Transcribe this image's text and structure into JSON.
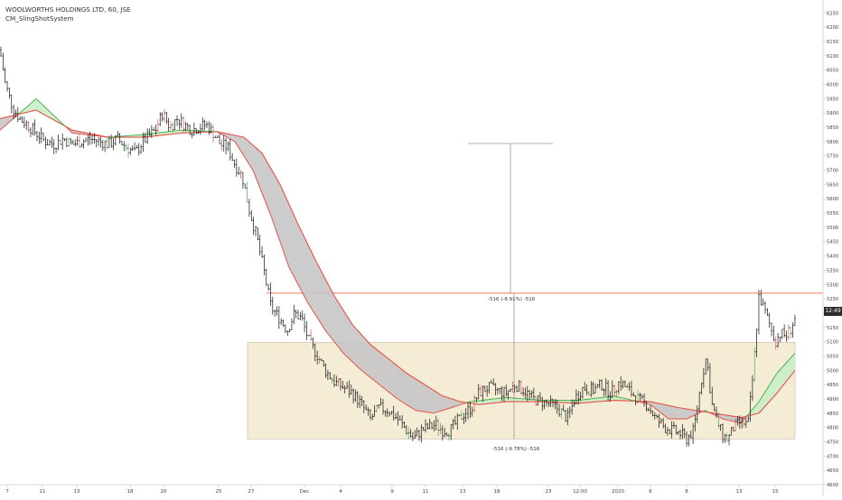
{
  "header": {
    "symbol_line": "WOOLWORTHS HOLDINGS LTD, 60, JSE",
    "indicator_name": "CM_SlingShotSystem"
  },
  "price_axis": {
    "ticks": [
      4600,
      4650,
      4700,
      4750,
      4800,
      4850,
      4900,
      4950,
      5000,
      5050,
      5100,
      5150,
      5200,
      5250,
      5300,
      5350,
      5400,
      5450,
      5500,
      5550,
      5600,
      5650,
      5700,
      5750,
      5800,
      5850,
      5900,
      5950,
      6000,
      6050,
      6100,
      6150,
      6200,
      6250
    ],
    "current_label": "12:49"
  },
  "time_axis": {
    "labels": [
      "7",
      "11",
      "13",
      "18",
      "20",
      "25",
      "27",
      "Dec",
      "4",
      "9",
      "11",
      "13",
      "18",
      "23",
      "12:00",
      "2020",
      "6",
      "8",
      "13",
      "15"
    ]
  },
  "measurements": {
    "upper_label": "-516 (-8.91%) -516",
    "lower_label": "-516 (-9.78%) -516"
  },
  "colors": {
    "up_candle": "#111111",
    "slow_ema": "#e8504a",
    "fast_ema_bull": "#4caf50",
    "band_bear": "#c7c7c7",
    "band_bull": "#c9eec5",
    "range_box": "#f5ecd6",
    "resistance_line": "#e8684f",
    "wick_up": "#4caf50",
    "wick_down": "#e8504a"
  },
  "chart_data": {
    "type": "candlestick",
    "title": "WOOLWORTHS HOLDINGS LTD, 60, JSE",
    "ylim": [
      4600,
      6270
    ],
    "y_ticks": [
      4600,
      4650,
      4700,
      4750,
      4800,
      4850,
      4900,
      4950,
      5000,
      5050,
      5100,
      5150,
      5200,
      5250,
      5300,
      5350,
      5400,
      5450,
      5500,
      5550,
      5600,
      5650,
      5700,
      5750,
      5800,
      5850,
      5900,
      5950,
      6000,
      6050,
      6100,
      6150,
      6200,
      6250
    ],
    "x_ticks": [
      "7",
      "11",
      "13",
      "18",
      "20",
      "25",
      "27",
      "Dec",
      "4",
      "9",
      "11",
      "13",
      "18",
      "23",
      "12:00",
      "2020",
      "6",
      "8",
      "13",
      "15"
    ],
    "close_path": [
      [
        0,
        6120
      ],
      [
        6,
        6000
      ],
      [
        14,
        5920
      ],
      [
        22,
        5880
      ],
      [
        30,
        5860
      ],
      [
        40,
        5830
      ],
      [
        50,
        5800
      ],
      [
        60,
        5790
      ],
      [
        70,
        5810
      ],
      [
        80,
        5790
      ],
      [
        90,
        5800
      ],
      [
        100,
        5810
      ],
      [
        110,
        5800
      ],
      [
        120,
        5790
      ],
      [
        130,
        5810
      ],
      [
        140,
        5780
      ],
      [
        150,
        5760
      ],
      [
        158,
        5800
      ],
      [
        165,
        5820
      ],
      [
        172,
        5840
      ],
      [
        180,
        5900
      ],
      [
        188,
        5850
      ],
      [
        196,
        5880
      ],
      [
        204,
        5860
      ],
      [
        212,
        5840
      ],
      [
        220,
        5850
      ],
      [
        228,
        5860
      ],
      [
        236,
        5830
      ],
      [
        244,
        5790
      ],
      [
        252,
        5780
      ],
      [
        260,
        5720
      ],
      [
        268,
        5680
      ],
      [
        276,
        5560
      ],
      [
        284,
        5470
      ],
      [
        292,
        5350
      ],
      [
        300,
        5220
      ],
      [
        310,
        5180
      ],
      [
        318,
        5140
      ],
      [
        326,
        5200
      ],
      [
        334,
        5180
      ],
      [
        342,
        5100
      ],
      [
        350,
        5060
      ],
      [
        360,
        5000
      ],
      [
        370,
        4960
      ],
      [
        380,
        4940
      ],
      [
        390,
        4920
      ],
      [
        400,
        4880
      ],
      [
        410,
        4830
      ],
      [
        420,
        4870
      ],
      [
        430,
        4860
      ],
      [
        440,
        4830
      ],
      [
        450,
        4790
      ],
      [
        458,
        4760
      ],
      [
        466,
        4790
      ],
      [
        474,
        4800
      ],
      [
        482,
        4810
      ],
      [
        490,
        4790
      ],
      [
        498,
        4790
      ],
      [
        506,
        4820
      ],
      [
        514,
        4850
      ],
      [
        522,
        4870
      ],
      [
        530,
        4920
      ],
      [
        540,
        4940
      ],
      [
        550,
        4930
      ],
      [
        560,
        4920
      ],
      [
        570,
        4950
      ],
      [
        580,
        4930
      ],
      [
        590,
        4900
      ],
      [
        600,
        4890
      ],
      [
        610,
        4880
      ],
      [
        620,
        4860
      ],
      [
        628,
        4830
      ],
      [
        636,
        4900
      ],
      [
        646,
        4940
      ],
      [
        656,
        4930
      ],
      [
        666,
        4950
      ],
      [
        676,
        4920
      ],
      [
        686,
        4960
      ],
      [
        696,
        4930
      ],
      [
        706,
        4900
      ],
      [
        716,
        4880
      ],
      [
        726,
        4830
      ],
      [
        736,
        4800
      ],
      [
        744,
        4790
      ],
      [
        752,
        4780
      ],
      [
        760,
        4760
      ],
      [
        768,
        4790
      ],
      [
        776,
        4960
      ],
      [
        782,
        5050
      ],
      [
        788,
        4880
      ],
      [
        794,
        4820
      ],
      [
        800,
        4770
      ],
      [
        806,
        4760
      ],
      [
        812,
        4800
      ],
      [
        820,
        4820
      ],
      [
        828,
        4810
      ],
      [
        834,
        5000
      ],
      [
        840,
        5260
      ],
      [
        846,
        5210
      ],
      [
        852,
        5160
      ],
      [
        858,
        5100
      ],
      [
        864,
        5130
      ],
      [
        870,
        5120
      ],
      [
        876,
        5150
      ],
      [
        880,
        5180
      ]
    ],
    "series": [
      {
        "name": "CM_SlingShotSystem slow EMA",
        "points": [
          [
            0,
            5880
          ],
          [
            40,
            5910
          ],
          [
            80,
            5840
          ],
          [
            120,
            5815
          ],
          [
            160,
            5815
          ],
          [
            200,
            5830
          ],
          [
            240,
            5835
          ],
          [
            270,
            5815
          ],
          [
            290,
            5760
          ],
          [
            310,
            5650
          ],
          [
            330,
            5510
          ],
          [
            350,
            5380
          ],
          [
            370,
            5260
          ],
          [
            390,
            5160
          ],
          [
            410,
            5090
          ],
          [
            430,
            5040
          ],
          [
            450,
            4990
          ],
          [
            470,
            4950
          ],
          [
            490,
            4910
          ],
          [
            510,
            4890
          ],
          [
            530,
            4880
          ],
          [
            560,
            4890
          ],
          [
            600,
            4890
          ],
          [
            640,
            4885
          ],
          [
            680,
            4895
          ],
          [
            720,
            4890
          ],
          [
            750,
            4870
          ],
          [
            780,
            4855
          ],
          [
            800,
            4845
          ],
          [
            820,
            4835
          ],
          [
            840,
            4850
          ],
          [
            860,
            4920
          ],
          [
            880,
            5000
          ]
        ]
      },
      {
        "name": "CM_SlingShotSystem fast EMA",
        "points": [
          [
            0,
            5840
          ],
          [
            40,
            5950
          ],
          [
            80,
            5830
          ],
          [
            120,
            5815
          ],
          [
            160,
            5825
          ],
          [
            200,
            5840
          ],
          [
            240,
            5835
          ],
          [
            260,
            5800
          ],
          [
            280,
            5700
          ],
          [
            300,
            5540
          ],
          [
            320,
            5360
          ],
          [
            340,
            5240
          ],
          [
            360,
            5140
          ],
          [
            380,
            5060
          ],
          [
            400,
            5000
          ],
          [
            420,
            4950
          ],
          [
            440,
            4900
          ],
          [
            460,
            4860
          ],
          [
            480,
            4850
          ],
          [
            500,
            4870
          ],
          [
            520,
            4890
          ],
          [
            560,
            4905
          ],
          [
            600,
            4895
          ],
          [
            640,
            4895
          ],
          [
            680,
            4910
          ],
          [
            720,
            4880
          ],
          [
            740,
            4830
          ],
          [
            760,
            4830
          ],
          [
            780,
            4860
          ],
          [
            800,
            4830
          ],
          [
            820,
            4815
          ],
          [
            840,
            4890
          ],
          [
            860,
            4990
          ],
          [
            880,
            5060
          ]
        ]
      }
    ],
    "annotations": {
      "resistance_level": 5270,
      "range_box_y": [
        4760,
        5098
      ],
      "range_box_x_start": 274,
      "upper_measure_label": "-516 (-8.91%) -516",
      "lower_measure_label": "-516 (-9.78%) -516"
    },
    "grid": false
  }
}
